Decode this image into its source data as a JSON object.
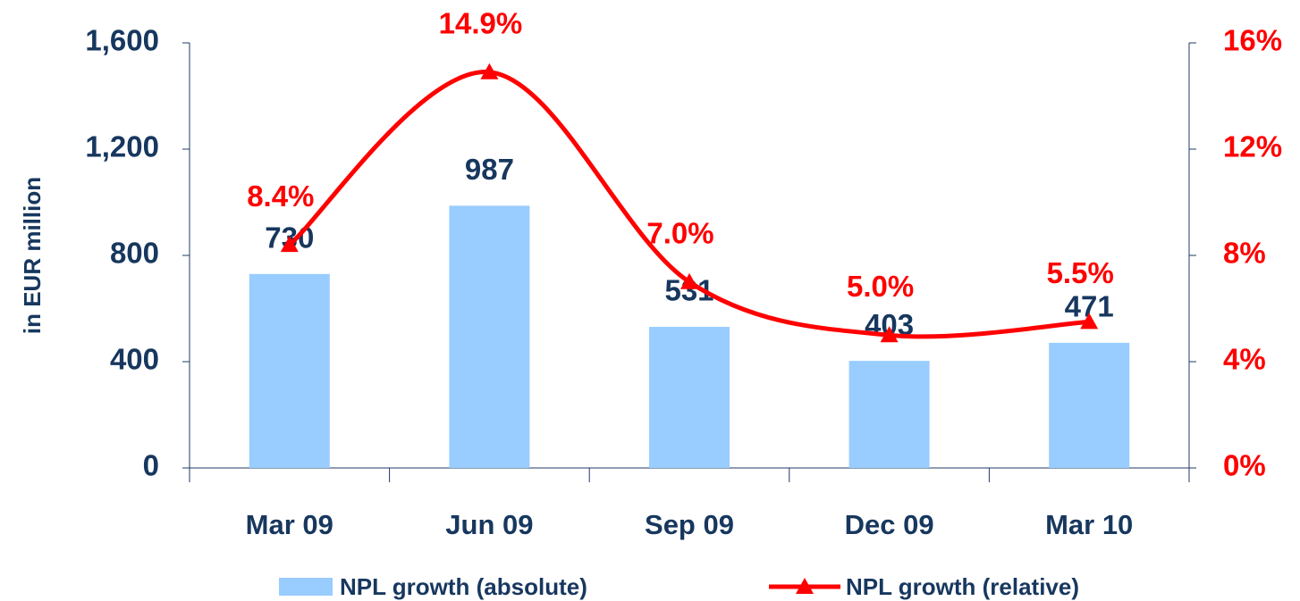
{
  "chart_data": {
    "type": "bar",
    "ylabel": "in EUR million",
    "categories": [
      "Mar 09",
      "Jun 09",
      "Sep 09",
      "Dec 09",
      "Mar 10"
    ],
    "series": [
      {
        "name": "NPL growth (absolute)",
        "type": "bar",
        "color": "#99ccff",
        "values": [
          730,
          987,
          531,
          403,
          471
        ]
      },
      {
        "name": "NPL growth (relative)",
        "type": "line",
        "axis": "y2",
        "color": "#ff0000",
        "values": [
          8.4,
          14.9,
          7.0,
          5.0,
          5.5
        ],
        "value_labels": [
          "8.4%",
          "14.9%",
          "7.0%",
          "5.0%",
          "5.5%"
        ]
      }
    ],
    "ylim": [
      0,
      1600
    ],
    "yticks": [
      0,
      {
        "value": 400,
        "label": "400"
      },
      {
        "value": 800,
        "label": "800"
      },
      {
        "value": 1200,
        "label": "1,200"
      },
      {
        "value": 1600,
        "label": "1,600"
      }
    ],
    "y2lim": [
      0,
      16
    ],
    "y2ticks": [
      {
        "value": 0,
        "label": "0%"
      },
      {
        "value": 4,
        "label": "4%"
      },
      {
        "value": 8,
        "label": "8%"
      },
      {
        "value": 12,
        "label": "12%"
      },
      {
        "value": 16,
        "label": "16%"
      }
    ],
    "legend": "bottom"
  }
}
